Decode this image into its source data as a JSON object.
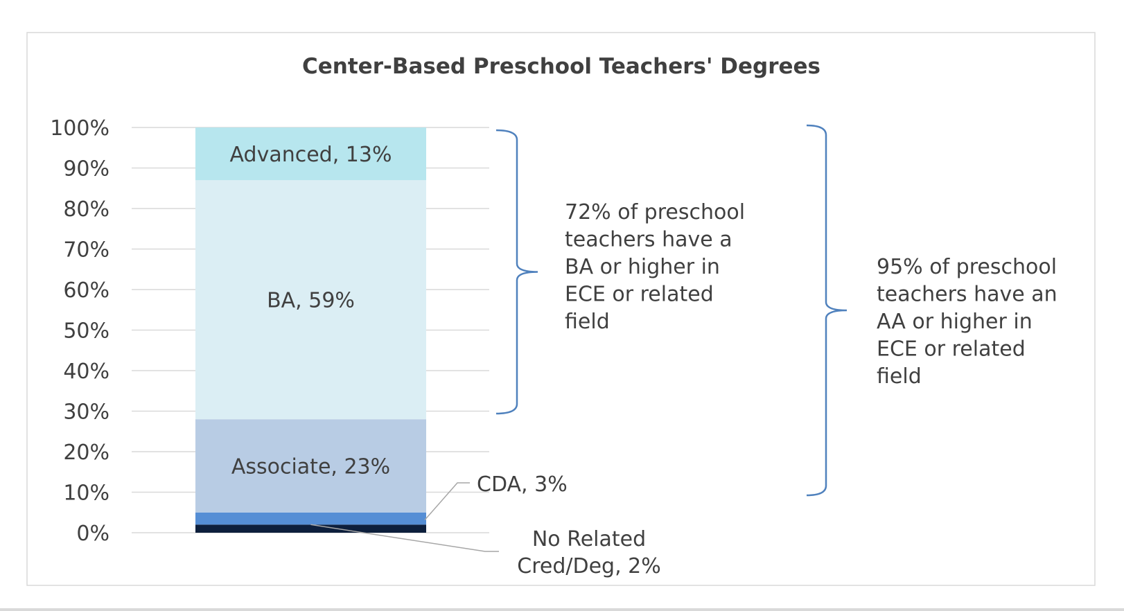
{
  "chart_data": {
    "type": "bar",
    "stacked": true,
    "title": "Center-Based Preschool Teachers' Degrees",
    "ylim": [
      0,
      100
    ],
    "y_ticks": [
      "0%",
      "10%",
      "20%",
      "30%",
      "40%",
      "50%",
      "60%",
      "70%",
      "80%",
      "90%",
      "100%"
    ],
    "grid": true,
    "segments": [
      {
        "key": "none",
        "value": 2,
        "color": "#0d1f3c",
        "label": "No Related Cred/Deg, 2%",
        "label_lines": [
          "No Related",
          "Cred/Deg, 2%"
        ]
      },
      {
        "key": "cda",
        "value": 3,
        "color": "#558ed5",
        "label": "CDA, 3%"
      },
      {
        "key": "associate",
        "value": 23,
        "color": "#b8cce4",
        "label": "Associate, 23%"
      },
      {
        "key": "ba",
        "value": 59,
        "color": "#dbeef4",
        "label": "BA, 59%"
      },
      {
        "key": "advanced",
        "value": 13,
        "color": "#b7e6ee",
        "label": "Advanced, 13%"
      }
    ],
    "annotations": [
      {
        "key": "ba_or_higher",
        "value": 72,
        "lines": [
          "72% of preschool",
          "teachers have a",
          "BA or higher in",
          "ECE or related",
          "field"
        ]
      },
      {
        "key": "aa_or_higher",
        "value": 95,
        "lines": [
          "95% of preschool",
          "teachers have an",
          "AA or higher in",
          "ECE or related",
          "field"
        ]
      }
    ]
  }
}
